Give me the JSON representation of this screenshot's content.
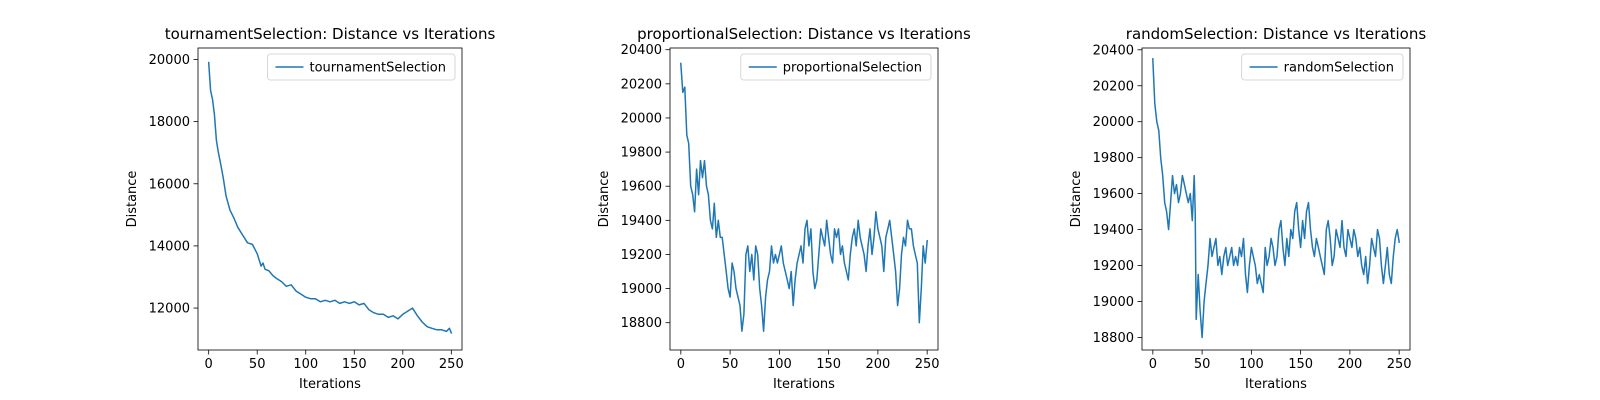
{
  "chart_data": [
    {
      "type": "line",
      "title": "tournamentSelection: Distance vs Iterations",
      "xlabel": "Iterations",
      "ylabel": "Distance",
      "xlim": [
        -11,
        261
      ],
      "ylim": [
        10650,
        20370
      ],
      "xticks": [
        0,
        50,
        100,
        150,
        200,
        250
      ],
      "yticks": [
        12000,
        14000,
        16000,
        18000,
        20000
      ],
      "legend": "top-right",
      "grid": false,
      "series": [
        {
          "name": "tournamentSelection",
          "color": "#1f77b4",
          "x": [
            0,
            2,
            4,
            6,
            8,
            10,
            12,
            15,
            18,
            22,
            26,
            30,
            35,
            40,
            45,
            50,
            54,
            56,
            58,
            62,
            66,
            70,
            75,
            80,
            85,
            90,
            95,
            100,
            105,
            110,
            115,
            120,
            125,
            130,
            135,
            140,
            145,
            150,
            155,
            160,
            165,
            170,
            175,
            180,
            185,
            190,
            195,
            200,
            205,
            210,
            215,
            220,
            225,
            230,
            235,
            240,
            245,
            248,
            250
          ],
          "values": [
            19900,
            19000,
            18700,
            18200,
            17400,
            17000,
            16700,
            16200,
            15600,
            15150,
            14900,
            14600,
            14350,
            14100,
            14050,
            13750,
            13350,
            13450,
            13250,
            13200,
            13050,
            12950,
            12850,
            12700,
            12750,
            12550,
            12450,
            12350,
            12300,
            12300,
            12200,
            12250,
            12200,
            12250,
            12150,
            12200,
            12150,
            12200,
            12100,
            12150,
            11950,
            11850,
            11800,
            11800,
            11700,
            11750,
            11650,
            11800,
            11900,
            12000,
            11750,
            11550,
            11400,
            11350,
            11300,
            11300,
            11250,
            11350,
            11200
          ]
        }
      ]
    },
    {
      "type": "line",
      "title": "proportionalSelection: Distance vs Iterations",
      "xlabel": "Iterations",
      "ylabel": "Distance",
      "xlim": [
        -11,
        261
      ],
      "ylim": [
        18640,
        20410
      ],
      "xticks": [
        0,
        50,
        100,
        150,
        200,
        250
      ],
      "yticks": [
        18800,
        19000,
        19200,
        19400,
        19600,
        19800,
        20000,
        20200,
        20400
      ],
      "legend": "top-right",
      "grid": false,
      "series": [
        {
          "name": "proportionalSelection",
          "color": "#1f77b4",
          "x": [
            0,
            2,
            4,
            6,
            8,
            10,
            12,
            14,
            16,
            18,
            20,
            22,
            24,
            26,
            28,
            30,
            32,
            34,
            36,
            38,
            40,
            42,
            44,
            46,
            48,
            50,
            52,
            54,
            56,
            58,
            60,
            62,
            64,
            66,
            68,
            70,
            72,
            74,
            76,
            78,
            80,
            82,
            84,
            86,
            88,
            90,
            92,
            94,
            96,
            98,
            100,
            102,
            104,
            106,
            108,
            110,
            112,
            114,
            116,
            118,
            120,
            122,
            124,
            126,
            128,
            130,
            132,
            134,
            136,
            138,
            140,
            142,
            144,
            146,
            148,
            150,
            152,
            154,
            156,
            158,
            160,
            162,
            164,
            166,
            168,
            170,
            172,
            174,
            176,
            178,
            180,
            182,
            184,
            186,
            188,
            190,
            192,
            194,
            196,
            198,
            200,
            202,
            204,
            206,
            208,
            210,
            212,
            214,
            216,
            218,
            220,
            222,
            224,
            226,
            228,
            230,
            232,
            234,
            236,
            238,
            240,
            242,
            244,
            246,
            248,
            250
          ],
          "values": [
            20320,
            20150,
            20180,
            19900,
            19850,
            19600,
            19550,
            19450,
            19700,
            19550,
            19750,
            19650,
            19750,
            19600,
            19550,
            19400,
            19350,
            19500,
            19300,
            19400,
            19300,
            19300,
            19200,
            19100,
            19000,
            18950,
            19150,
            19100,
            19000,
            18950,
            18900,
            18750,
            18850,
            19200,
            19250,
            19100,
            19200,
            19050,
            19250,
            19200,
            19000,
            18900,
            18750,
            18950,
            19050,
            19100,
            19250,
            19150,
            19200,
            19150,
            19200,
            19250,
            19150,
            19100,
            19050,
            19000,
            19100,
            18900,
            19050,
            19150,
            19200,
            19250,
            19150,
            19350,
            19400,
            19250,
            19350,
            19100,
            19000,
            19050,
            19200,
            19350,
            19300,
            19250,
            19400,
            19300,
            19200,
            19150,
            19350,
            19300,
            19350,
            19200,
            19250,
            19150,
            19100,
            19050,
            19200,
            19300,
            19350,
            19250,
            19400,
            19300,
            19250,
            19200,
            19100,
            19250,
            19350,
            19200,
            19300,
            19450,
            19350,
            19300,
            19250,
            19100,
            19300,
            19350,
            19400,
            19300,
            19200,
            19100,
            18900,
            19000,
            19200,
            19300,
            19250,
            19400,
            19350,
            19350,
            19250,
            19200,
            19150,
            18800,
            19000,
            19250,
            19150,
            19280
          ]
        }
      ]
    },
    {
      "type": "line",
      "title": "randomSelection: Distance vs Iterations",
      "xlabel": "Iterations",
      "ylabel": "Distance",
      "xlim": [
        -11,
        261
      ],
      "ylim": [
        18730,
        20410
      ],
      "xticks": [
        0,
        50,
        100,
        150,
        200,
        250
      ],
      "yticks": [
        18800,
        19000,
        19200,
        19400,
        19600,
        19800,
        20000,
        20200,
        20400
      ],
      "legend": "top-right",
      "grid": false,
      "series": [
        {
          "name": "randomSelection",
          "color": "#1f77b4",
          "x": [
            0,
            2,
            4,
            6,
            8,
            10,
            12,
            14,
            16,
            18,
            20,
            22,
            24,
            26,
            28,
            30,
            32,
            34,
            36,
            38,
            40,
            42,
            43,
            44,
            46,
            48,
            50,
            52,
            54,
            56,
            58,
            60,
            62,
            64,
            66,
            68,
            70,
            72,
            74,
            76,
            78,
            80,
            82,
            84,
            86,
            88,
            90,
            92,
            94,
            96,
            98,
            100,
            102,
            104,
            106,
            108,
            110,
            112,
            114,
            116,
            118,
            120,
            122,
            124,
            126,
            128,
            130,
            132,
            134,
            136,
            138,
            140,
            142,
            144,
            146,
            148,
            150,
            152,
            154,
            156,
            158,
            160,
            162,
            164,
            166,
            168,
            170,
            172,
            174,
            176,
            178,
            180,
            182,
            184,
            186,
            188,
            190,
            192,
            194,
            196,
            198,
            200,
            202,
            204,
            206,
            208,
            210,
            212,
            214,
            216,
            218,
            220,
            222,
            224,
            226,
            228,
            230,
            232,
            234,
            236,
            238,
            240,
            242,
            244,
            246,
            248,
            250
          ],
          "values": [
            20350,
            20100,
            20000,
            19950,
            19800,
            19700,
            19550,
            19500,
            19400,
            19550,
            19700,
            19600,
            19650,
            19550,
            19600,
            19700,
            19650,
            19600,
            19550,
            19600,
            19450,
            19700,
            19500,
            18900,
            19150,
            18950,
            18800,
            19000,
            19100,
            19200,
            19350,
            19250,
            19300,
            19350,
            19200,
            19250,
            19150,
            19250,
            19300,
            19200,
            19250,
            19300,
            19200,
            19250,
            19200,
            19300,
            19250,
            19350,
            19150,
            19050,
            19200,
            19300,
            19250,
            19200,
            19100,
            19150,
            19100,
            19050,
            19300,
            19200,
            19250,
            19350,
            19300,
            19200,
            19250,
            19400,
            19450,
            19300,
            19200,
            19350,
            19250,
            19400,
            19350,
            19500,
            19550,
            19400,
            19300,
            19450,
            19350,
            19500,
            19550,
            19400,
            19300,
            19250,
            19350,
            19300,
            19250,
            19200,
            19150,
            19400,
            19450,
            19350,
            19200,
            19250,
            19400,
            19350,
            19300,
            19450,
            19300,
            19250,
            19400,
            19350,
            19300,
            19400,
            19350,
            19250,
            19300,
            19200,
            19150,
            19250,
            19100,
            19200,
            19350,
            19300,
            19250,
            19400,
            19350,
            19200,
            19100,
            19200,
            19300,
            19150,
            19100,
            19250,
            19350,
            19400,
            19330
          ]
        }
      ]
    }
  ]
}
